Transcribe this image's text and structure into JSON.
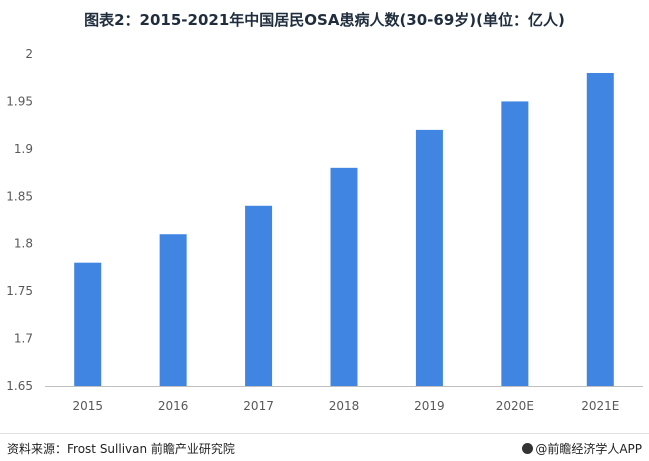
{
  "chart_data": {
    "type": "bar",
    "title": "图表2：2015-2021年中国居民OSA患病人数(30-69岁)(单位：亿人)",
    "categories": [
      "2015",
      "2016",
      "2017",
      "2018",
      "2019",
      "2020E",
      "2021E"
    ],
    "values": [
      1.78,
      1.81,
      1.84,
      1.88,
      1.92,
      1.95,
      1.98
    ],
    "ylim": [
      1.65,
      2.0
    ],
    "yticks": [
      "1.65",
      "1.7",
      "1.75",
      "1.8",
      "1.85",
      "1.9",
      "1.95",
      "2"
    ],
    "xlabel": "",
    "ylabel": "",
    "grid": false,
    "bar_color": "#4185e2"
  },
  "footer": {
    "source": "资料来源：Frost Sullivan 前瞻产业研究院",
    "brand": "@前瞻经济学人APP"
  }
}
